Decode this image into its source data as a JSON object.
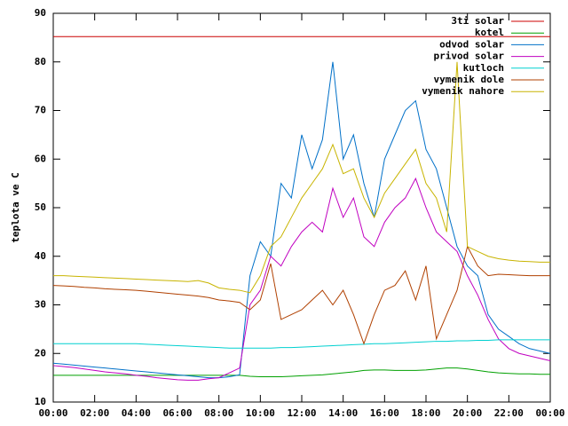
{
  "chart_data": {
    "type": "line",
    "ylabel": "teplota ve C",
    "x": [
      0,
      0.5,
      1,
      1.5,
      2,
      2.5,
      3,
      3.5,
      4,
      4.5,
      5,
      5.5,
      6,
      6.5,
      7,
      7.5,
      8,
      8.5,
      9,
      9.5,
      10,
      10.5,
      11,
      11.5,
      12,
      12.5,
      13,
      13.5,
      14,
      14.5,
      15,
      15.5,
      16,
      16.5,
      17,
      17.5,
      18,
      18.5,
      19,
      19.5,
      20,
      20.5,
      21,
      21.5,
      22,
      22.5,
      23,
      23.5,
      24
    ],
    "xlim": [
      0,
      24
    ],
    "xticks": [
      {
        "value": 0,
        "label": "00:00"
      },
      {
        "value": 2,
        "label": "02:00"
      },
      {
        "value": 4,
        "label": "04:00"
      },
      {
        "value": 6,
        "label": "06:00"
      },
      {
        "value": 8,
        "label": "08:00"
      },
      {
        "value": 10,
        "label": "10:00"
      },
      {
        "value": 12,
        "label": "12:00"
      },
      {
        "value": 14,
        "label": "14:00"
      },
      {
        "value": 16,
        "label": "16:00"
      },
      {
        "value": 18,
        "label": "18:00"
      },
      {
        "value": 20,
        "label": "20:00"
      },
      {
        "value": 22,
        "label": "22:00"
      },
      {
        "value": 24,
        "label": "00:00"
      }
    ],
    "ylim": [
      10,
      90
    ],
    "yticks": [
      10,
      20,
      30,
      40,
      50,
      60,
      70,
      80,
      90
    ],
    "legend": "top-right",
    "series": [
      {
        "name": "3ti solar",
        "color": "#cc0000",
        "values": [
          85.2,
          85.2,
          85.2,
          85.2,
          85.2,
          85.2,
          85.2,
          85.2,
          85.2,
          85.2,
          85.2,
          85.2,
          85.2,
          85.2,
          85.2,
          85.2,
          85.2,
          85.2,
          85.2,
          85.2,
          85.2,
          85.2,
          85.2,
          85.2,
          85.2,
          85.2,
          85.2,
          85.2,
          85.2,
          85.2,
          85.2,
          85.2,
          85.2,
          85.2,
          85.2,
          85.2,
          85.2,
          85.2,
          85.2,
          85.2,
          85.2,
          85.2,
          85.2,
          85.2,
          85.2,
          85.2,
          85.2,
          85.2,
          85.2
        ]
      },
      {
        "name": "kotel",
        "color": "#00a000",
        "values": [
          15.5,
          15.5,
          15.5,
          15.5,
          15.5,
          15.5,
          15.5,
          15.5,
          15.5,
          15.5,
          15.5,
          15.5,
          15.5,
          15.5,
          15.5,
          15.5,
          15.5,
          15.5,
          15.5,
          15.3,
          15.2,
          15.2,
          15.2,
          15.3,
          15.4,
          15.5,
          15.6,
          15.8,
          16,
          16.2,
          16.5,
          16.6,
          16.6,
          16.5,
          16.5,
          16.5,
          16.6,
          16.8,
          17,
          17,
          16.8,
          16.5,
          16.2,
          16,
          15.9,
          15.8,
          15.8,
          15.7,
          15.7
        ]
      },
      {
        "name": "odvod solar",
        "color": "#0070c8",
        "values": [
          18,
          17.8,
          17.6,
          17.4,
          17.2,
          17,
          16.8,
          16.6,
          16.4,
          16.2,
          16,
          15.8,
          15.6,
          15.4,
          15.2,
          15,
          15,
          15.2,
          15.6,
          36,
          43,
          40,
          55,
          52,
          65,
          58,
          64,
          80,
          60,
          65,
          55,
          48,
          60,
          65,
          70,
          72,
          62,
          58,
          50,
          42,
          38,
          36,
          28,
          25,
          23.5,
          22,
          21,
          20.5,
          20
        ]
      },
      {
        "name": "privod solar",
        "color": "#c000c0",
        "values": [
          17.5,
          17.3,
          17.1,
          16.8,
          16.5,
          16.2,
          16,
          15.8,
          15.5,
          15.3,
          15,
          14.8,
          14.6,
          14.5,
          14.5,
          14.8,
          15,
          16,
          17,
          30,
          33,
          40,
          38,
          42,
          45,
          47,
          45,
          54,
          48,
          52,
          44,
          42,
          47,
          50,
          52,
          56,
          50,
          45,
          43,
          41,
          36,
          32,
          27,
          23,
          21,
          20,
          19.5,
          19,
          18.5
        ]
      },
      {
        "name": "kutloch",
        "color": "#00d0d0",
        "values": [
          22,
          22,
          22,
          22,
          22,
          22,
          22,
          22,
          22,
          21.9,
          21.8,
          21.7,
          21.6,
          21.5,
          21.4,
          21.3,
          21.2,
          21.1,
          21.1,
          21.1,
          21.1,
          21.1,
          21.2,
          21.2,
          21.3,
          21.4,
          21.5,
          21.6,
          21.7,
          21.8,
          21.9,
          22,
          22,
          22.1,
          22.2,
          22.3,
          22.4,
          22.5,
          22.5,
          22.6,
          22.6,
          22.7,
          22.7,
          22.8,
          22.8,
          22.8,
          22.8,
          22.8,
          22.8
        ]
      },
      {
        "name": "vymenik dole",
        "color": "#b04000",
        "values": [
          34,
          33.9,
          33.8,
          33.6,
          33.5,
          33.3,
          33.2,
          33.1,
          33,
          32.8,
          32.6,
          32.4,
          32.2,
          32,
          31.8,
          31.5,
          31,
          30.8,
          30.5,
          29,
          31,
          38.5,
          27,
          28,
          29,
          31,
          33,
          30,
          33,
          28,
          22,
          28,
          33,
          34,
          37,
          31,
          38,
          23,
          28,
          33,
          42,
          38,
          36,
          36.3,
          36.2,
          36.1,
          36,
          36,
          36
        ]
      },
      {
        "name": "vymenik nahore",
        "color": "#c8b400",
        "values": [
          36,
          36,
          35.9,
          35.8,
          35.7,
          35.6,
          35.5,
          35.4,
          35.3,
          35.2,
          35.1,
          35,
          34.9,
          34.8,
          35,
          34.5,
          33.5,
          33.2,
          33,
          32.5,
          36,
          42,
          44,
          48,
          52,
          55,
          58,
          63,
          57,
          58,
          52,
          48,
          53,
          56,
          59,
          62,
          55,
          52,
          45,
          80,
          42,
          41,
          40,
          39.5,
          39.2,
          39,
          38.9,
          38.8,
          38.8
        ]
      }
    ]
  }
}
